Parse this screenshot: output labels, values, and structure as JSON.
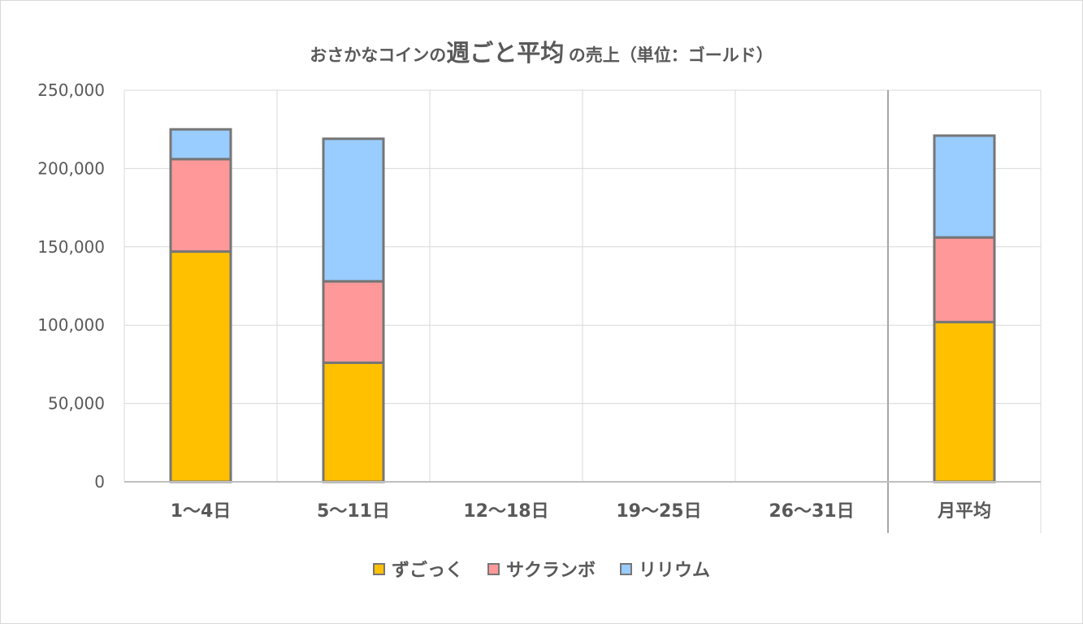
{
  "title": {
    "part1": "おさかなコインの",
    "part2": "週ごと平均",
    "part3": "の売上（単位：ゴールド）"
  },
  "colors": {
    "ずごっく": "#ffc000",
    "サクランボ": "#ff9999",
    "リリウム": "#99ccff",
    "bar_border": "#767676",
    "gridline": "#d9d9d9",
    "axis": "#bfbfbf",
    "separator": "#a6a6a6"
  },
  "chart_data": {
    "type": "bar",
    "stacked": true,
    "categories": [
      "1～4日",
      "5～11日",
      "12～18日",
      "19～25日",
      "26～31日",
      "月平均"
    ],
    "series": [
      {
        "name": "ずごっく",
        "values": [
          147000,
          76000,
          0,
          0,
          0,
          102000
        ]
      },
      {
        "name": "サクランボ",
        "values": [
          59000,
          52000,
          0,
          0,
          0,
          54000
        ]
      },
      {
        "name": "リリウム",
        "values": [
          19000,
          91000,
          0,
          0,
          0,
          65000
        ]
      }
    ],
    "title": "おさかなコインの週ごと平均の売上（単位：ゴールド）",
    "xlabel": "",
    "ylabel": "",
    "ylim": [
      0,
      250000
    ],
    "yticks": [
      "0",
      "50,000",
      "100,000",
      "150,000",
      "200,000",
      "250,000"
    ],
    "grid": true,
    "legend_position": "bottom"
  }
}
